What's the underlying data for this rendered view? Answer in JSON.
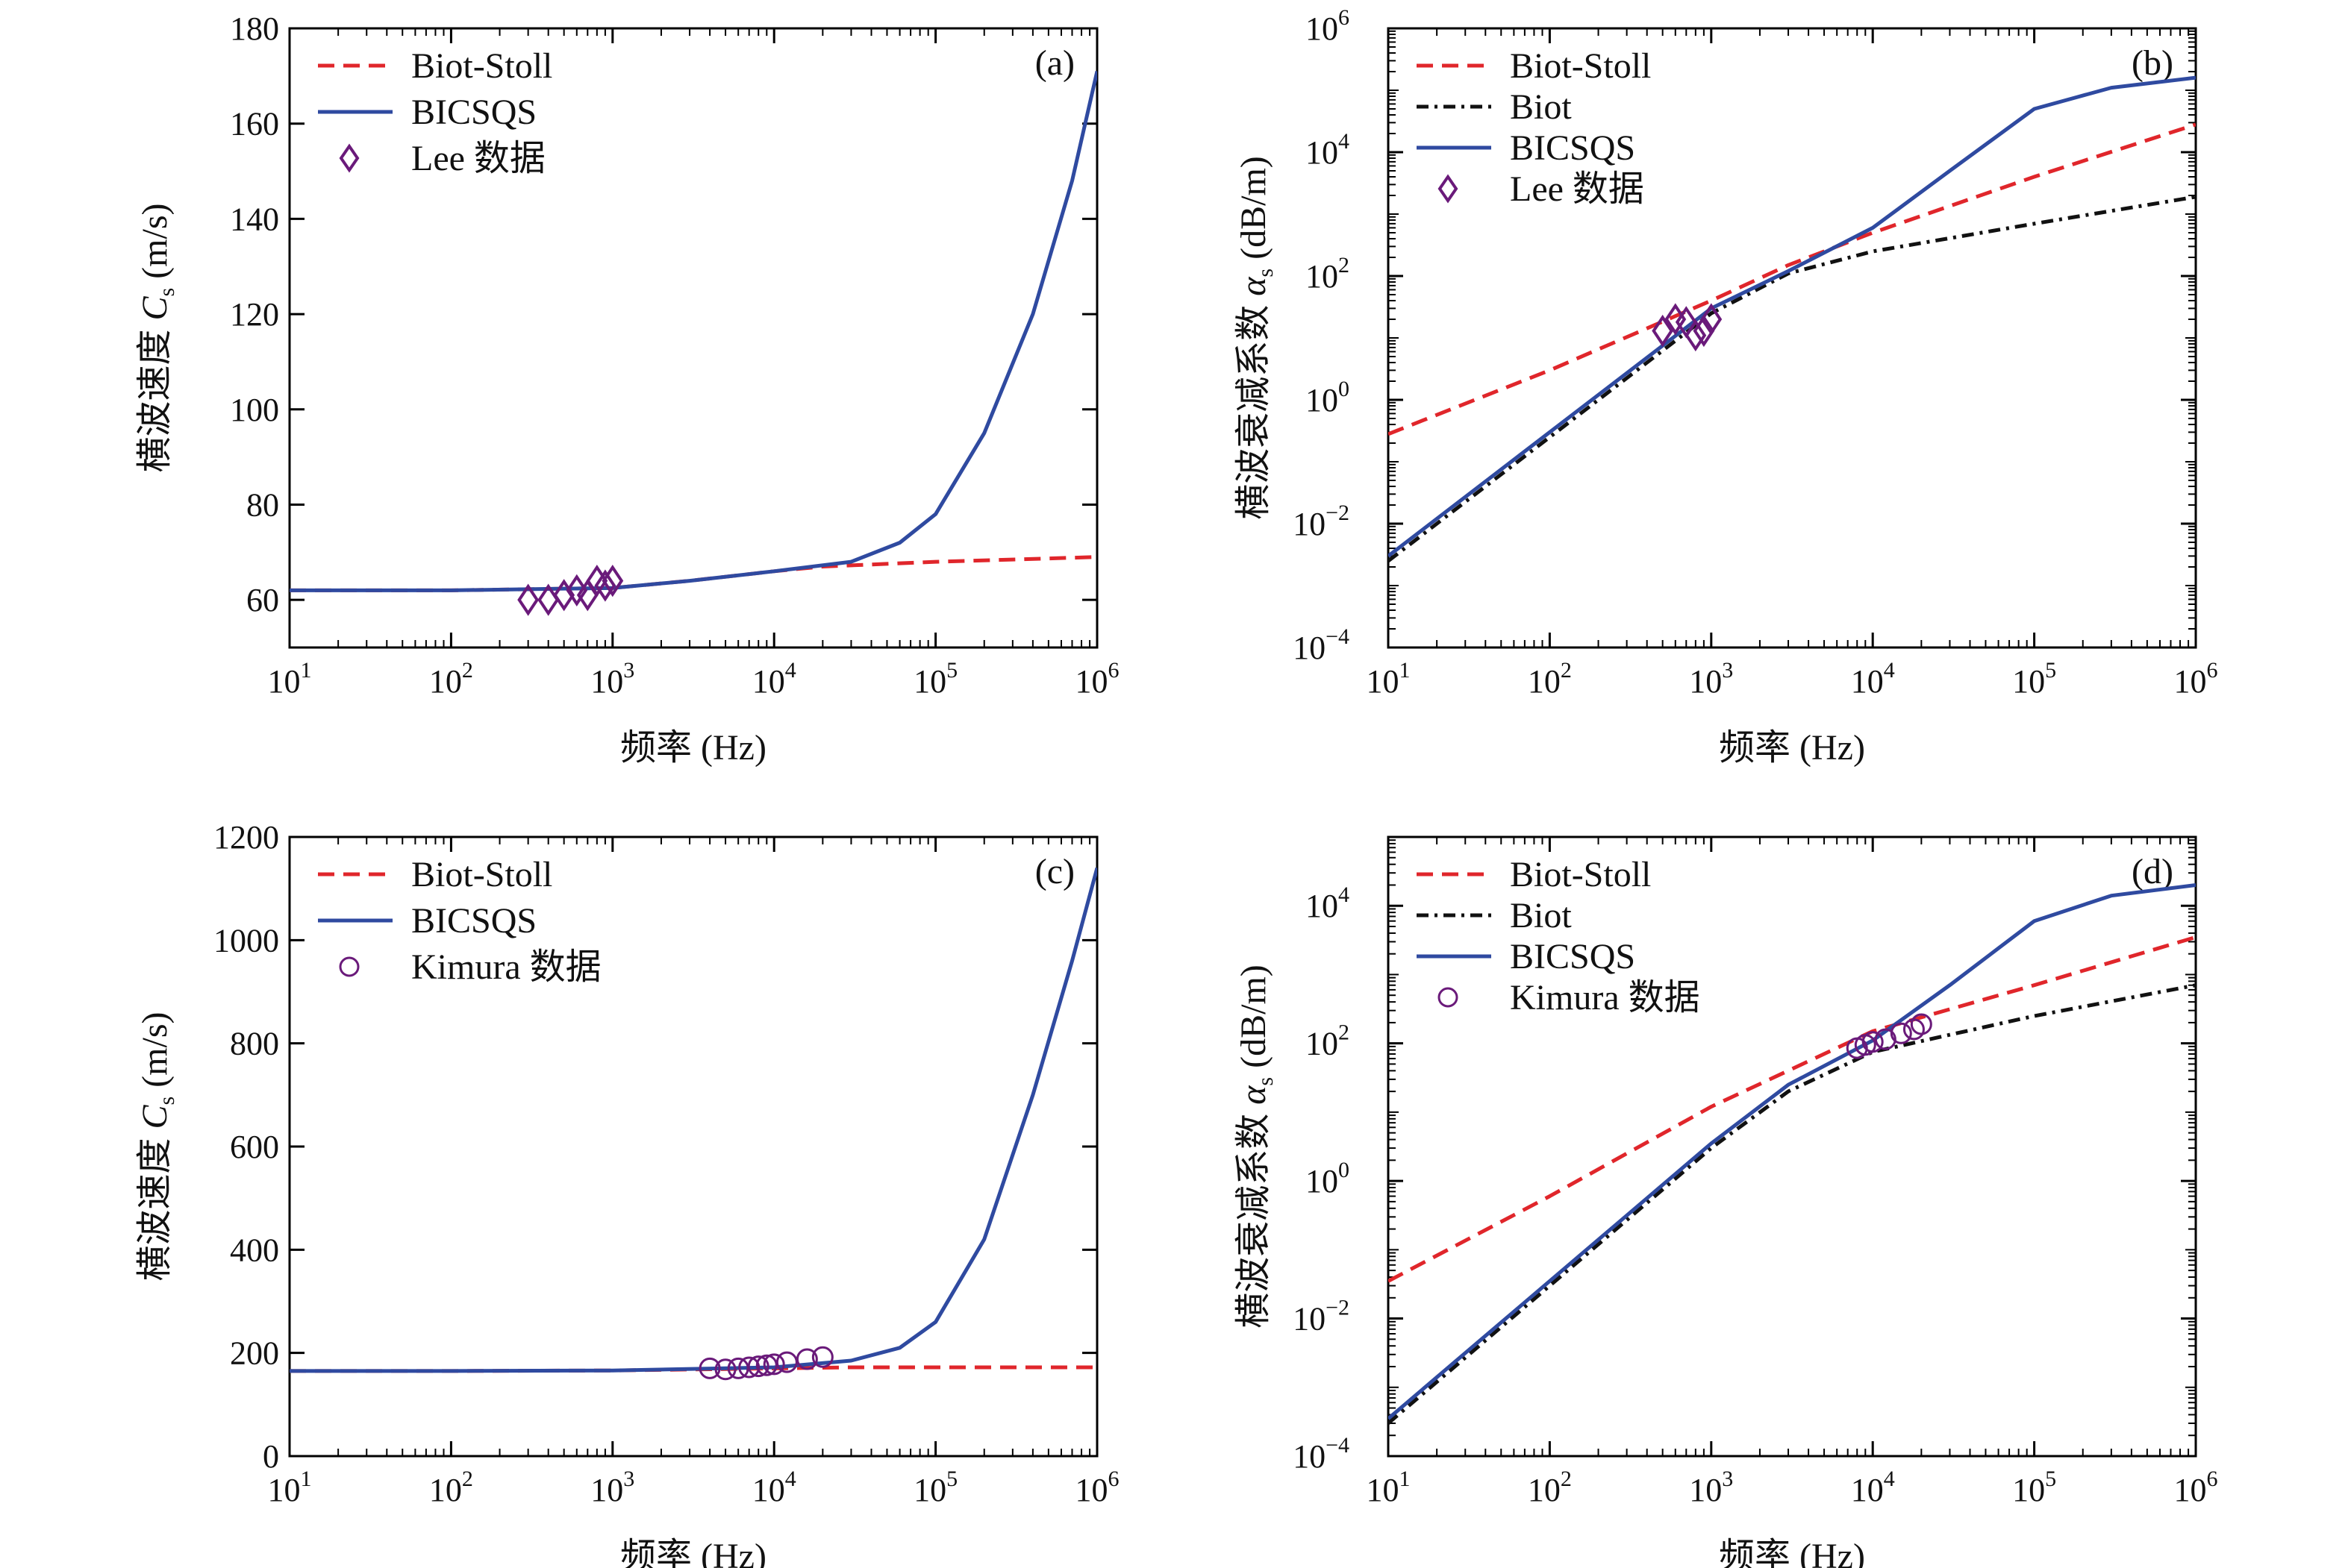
{
  "colors": {
    "biot_stoll": "#e0262b",
    "biot": "#111111",
    "bicsqs": "#2f4aa0",
    "data_marker": "#6a1a7a"
  },
  "chart_data": [
    {
      "panel": "(a)",
      "type": "line",
      "xlabel": "频率 (Hz)",
      "ylabel": "横波速度 C s (m/s)",
      "ylabel_main": "横波速度 ",
      "ylabel_sym": "C",
      "ylabel_sub": "s",
      "ylabel_unit": " (m/s)",
      "xscale": "log",
      "yscale": "linear",
      "xlim": [
        10,
        1000000
      ],
      "ylim": [
        50,
        180
      ],
      "xticks": [
        10,
        100,
        1000,
        10000,
        100000,
        1000000
      ],
      "xtick_labels": [
        [
          "10",
          "1"
        ],
        [
          "10",
          "2"
        ],
        [
          "10",
          "3"
        ],
        [
          "10",
          "4"
        ],
        [
          "10",
          "5"
        ],
        [
          "10",
          "6"
        ]
      ],
      "yticks": [
        60,
        80,
        100,
        120,
        140,
        160,
        180
      ],
      "ytick_labels": [
        [
          "60",
          ""
        ],
        [
          "80",
          ""
        ],
        [
          "100",
          ""
        ],
        [
          "120",
          ""
        ],
        [
          "140",
          ""
        ],
        [
          "160",
          ""
        ],
        [
          "180",
          ""
        ]
      ],
      "legend_position": "top-left",
      "series": [
        {
          "name": "Biot-Stoll",
          "style": "dashed",
          "color": "#e0262b",
          "x": [
            10,
            100,
            1000,
            3000,
            10000,
            20000,
            100000,
            1000000
          ],
          "y": [
            62,
            62,
            62.5,
            64,
            66,
            67,
            68,
            69
          ]
        },
        {
          "name": "BICSQS",
          "style": "solid",
          "color": "#2f4aa0",
          "x": [
            10,
            100,
            1000,
            3000,
            10000,
            30000,
            60000,
            100000,
            200000,
            400000,
            700000,
            1000000
          ],
          "y": [
            62,
            62,
            62.5,
            64,
            66,
            68,
            72,
            78,
            95,
            120,
            148,
            171
          ]
        }
      ],
      "markers": {
        "name": "Lee 数据",
        "shape": "diamond",
        "color": "#6a1a7a",
        "x": [
          300,
          400,
          500,
          600,
          700,
          800,
          900,
          1000
        ],
        "y": [
          60,
          60,
          61,
          62,
          61,
          64,
          63,
          64
        ]
      }
    },
    {
      "panel": "(b)",
      "type": "line",
      "xlabel": "频率 (Hz)",
      "ylabel": "横波衰减系数 α s (dB/m)",
      "ylabel_main": "横波衰减系数 ",
      "ylabel_sym": "α",
      "ylabel_sub": "s",
      "ylabel_unit": " (dB/m)",
      "xscale": "log",
      "yscale": "log",
      "xlim": [
        10,
        1000000
      ],
      "ylim": [
        0.0001,
        1000000
      ],
      "xticks": [
        10,
        100,
        1000,
        10000,
        100000,
        1000000
      ],
      "xtick_labels": [
        [
          "10",
          "1"
        ],
        [
          "10",
          "2"
        ],
        [
          "10",
          "3"
        ],
        [
          "10",
          "4"
        ],
        [
          "10",
          "5"
        ],
        [
          "10",
          "6"
        ]
      ],
      "yticks": [
        0.0001,
        0.01,
        1,
        100,
        10000,
        1000000
      ],
      "ytick_labels": [
        [
          "10",
          "−4"
        ],
        [
          "10",
          "−2"
        ],
        [
          "10",
          "0"
        ],
        [
          "10",
          "2"
        ],
        [
          "10",
          "4"
        ],
        [
          "10",
          "6"
        ]
      ],
      "legend_position": "top-left",
      "series": [
        {
          "name": "Biot-Stoll",
          "style": "dashed",
          "color": "#e0262b",
          "x": [
            10,
            100,
            1000,
            3000,
            10000,
            100000,
            1000000
          ],
          "y": [
            0.28,
            3,
            40,
            150,
            500,
            4000,
            28000
          ]
        },
        {
          "name": "Biot",
          "style": "dashdot",
          "color": "#111111",
          "x": [
            10,
            100,
            1000,
            3000,
            10000,
            100000,
            1000000
          ],
          "y": [
            0.0025,
            0.25,
            25,
            110,
            250,
            700,
            1900
          ]
        },
        {
          "name": "BICSQS",
          "style": "solid",
          "color": "#2f4aa0",
          "x": [
            10,
            100,
            1000,
            3000,
            10000,
            30000,
            100000,
            300000,
            1000000
          ],
          "y": [
            0.003,
            0.3,
            30,
            120,
            600,
            5000,
            50000,
            110000,
            160000
          ]
        }
      ],
      "markers": {
        "name": "Lee 数据",
        "shape": "diamond",
        "color": "#6a1a7a",
        "x": [
          500,
          600,
          700,
          800,
          900,
          1000
        ],
        "y": [
          13,
          20,
          18,
          11,
          13,
          20
        ]
      }
    },
    {
      "panel": "(c)",
      "type": "line",
      "xlabel": "频率 (Hz)",
      "ylabel": "横波速度 C s (m/s)",
      "ylabel_main": "横波速度 ",
      "ylabel_sym": "C",
      "ylabel_sub": "s",
      "ylabel_unit": " (m/s)",
      "xscale": "log",
      "yscale": "linear",
      "xlim": [
        10,
        1000000
      ],
      "ylim": [
        0,
        1200
      ],
      "xticks": [
        10,
        100,
        1000,
        10000,
        100000,
        1000000
      ],
      "xtick_labels": [
        [
          "10",
          "1"
        ],
        [
          "10",
          "2"
        ],
        [
          "10",
          "3"
        ],
        [
          "10",
          "4"
        ],
        [
          "10",
          "5"
        ],
        [
          "10",
          "6"
        ]
      ],
      "yticks": [
        0,
        200,
        400,
        600,
        800,
        1000,
        1200
      ],
      "ytick_labels": [
        [
          "0",
          ""
        ],
        [
          "200",
          ""
        ],
        [
          "400",
          ""
        ],
        [
          "600",
          ""
        ],
        [
          "800",
          ""
        ],
        [
          "1000",
          ""
        ],
        [
          "1200",
          ""
        ]
      ],
      "legend_position": "top-left",
      "series": [
        {
          "name": "Biot-Stoll",
          "style": "dashed",
          "color": "#e0262b",
          "x": [
            10,
            100,
            1000,
            10000,
            30000,
            100000,
            1000000
          ],
          "y": [
            165,
            165,
            166,
            170,
            172,
            172,
            172
          ]
        },
        {
          "name": "BICSQS",
          "style": "solid",
          "color": "#2f4aa0",
          "x": [
            10,
            100,
            1000,
            10000,
            30000,
            60000,
            100000,
            200000,
            400000,
            700000,
            1000000
          ],
          "y": [
            165,
            165,
            166,
            172,
            185,
            210,
            260,
            420,
            700,
            960,
            1140
          ]
        }
      ],
      "markers": {
        "name": "Kimura 数据",
        "shape": "circle",
        "color": "#6a1a7a",
        "x": [
          4000,
          5000,
          6000,
          7000,
          8000,
          9000,
          10000,
          12000,
          16000,
          20000
        ],
        "y": [
          170,
          168,
          170,
          172,
          174,
          176,
          178,
          182,
          188,
          192
        ]
      }
    },
    {
      "panel": "(d)",
      "type": "line",
      "xlabel": "频率 (Hz)",
      "ylabel": "横波衰减系数 α s (dB/m)",
      "ylabel_main": "横波衰减系数 ",
      "ylabel_sym": "α",
      "ylabel_sub": "s",
      "ylabel_unit": " (dB/m)",
      "xscale": "log",
      "yscale": "log",
      "xlim": [
        10,
        1000000
      ],
      "ylim": [
        0.0001,
        100000
      ],
      "xticks": [
        10,
        100,
        1000,
        10000,
        100000,
        1000000
      ],
      "xtick_labels": [
        [
          "10",
          "1"
        ],
        [
          "10",
          "2"
        ],
        [
          "10",
          "3"
        ],
        [
          "10",
          "4"
        ],
        [
          "10",
          "5"
        ],
        [
          "10",
          "6"
        ]
      ],
      "yticks": [
        0.0001,
        0.01,
        1,
        100,
        10000
      ],
      "ytick_labels": [
        [
          "10",
          "−4"
        ],
        [
          "10",
          "−2"
        ],
        [
          "10",
          "0"
        ],
        [
          "10",
          "2"
        ],
        [
          "10",
          "4"
        ]
      ],
      "legend_position": "top-left",
      "series": [
        {
          "name": "Biot-Stoll",
          "style": "dashed",
          "color": "#e0262b",
          "x": [
            10,
            100,
            1000,
            10000,
            100000,
            1000000
          ],
          "y": [
            0.035,
            0.6,
            12,
            150,
            700,
            3500
          ]
        },
        {
          "name": "Biot",
          "style": "dashdot",
          "color": "#111111",
          "x": [
            10,
            100,
            1000,
            3000,
            10000,
            100000,
            1000000
          ],
          "y": [
            0.0003,
            0.03,
            3,
            20,
            75,
            250,
            700
          ]
        },
        {
          "name": "BICSQS",
          "style": "solid",
          "color": "#2f4aa0",
          "x": [
            10,
            100,
            1000,
            3000,
            10000,
            30000,
            100000,
            300000,
            1000000
          ],
          "y": [
            0.00035,
            0.035,
            3.5,
            25,
            110,
            700,
            6000,
            14000,
            20000
          ]
        }
      ],
      "markers": {
        "name": "Kimura 数据",
        "shape": "circle",
        "color": "#6a1a7a",
        "x": [
          8000,
          9000,
          10000,
          12000,
          15000,
          18000,
          20000
        ],
        "y": [
          85,
          95,
          105,
          115,
          140,
          160,
          190
        ]
      }
    }
  ]
}
